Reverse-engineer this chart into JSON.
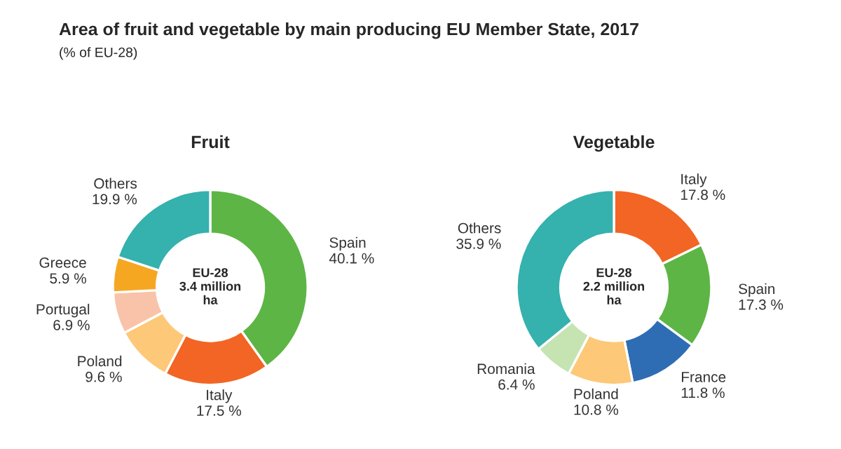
{
  "chart_data": [
    {
      "type": "donut",
      "title": "Fruit",
      "annotations": [
        "Area of fruit and vegetable by main producing EU Member State, 2017",
        "(% of EU-28)",
        "EU-28\n3.4 million\nha"
      ],
      "categories": [
        "Spain",
        "Italy",
        "Poland",
        "Portugal",
        "Greece",
        "Others"
      ],
      "values": [
        40.1,
        17.5,
        9.6,
        6.9,
        5.9,
        19.9
      ],
      "value_labels": [
        "40.1 %",
        "17.5 %",
        "9.6 %",
        "6.9 %",
        "5.9 %",
        "19.9 %"
      ],
      "colors": [
        "#5db545",
        "#f26524",
        "#fdc878",
        "#f9c3aa",
        "#f6a722",
        "#35b1ae"
      ]
    },
    {
      "type": "donut",
      "title": "Vegetable",
      "annotations": [
        "EU-28\n2.2 million\nha"
      ],
      "categories": [
        "Italy",
        "Spain",
        "France",
        "Poland",
        "Romania",
        "Others"
      ],
      "values": [
        17.8,
        17.3,
        11.8,
        10.8,
        6.4,
        35.9
      ],
      "value_labels": [
        "17.8 %",
        "17.3 %",
        "11.8 %",
        "10.8 %",
        "6.4 %",
        "35.9 %"
      ],
      "colors": [
        "#f26524",
        "#5db545",
        "#2e6db4",
        "#fdc878",
        "#c6e4b2",
        "#35b1ae"
      ]
    }
  ]
}
